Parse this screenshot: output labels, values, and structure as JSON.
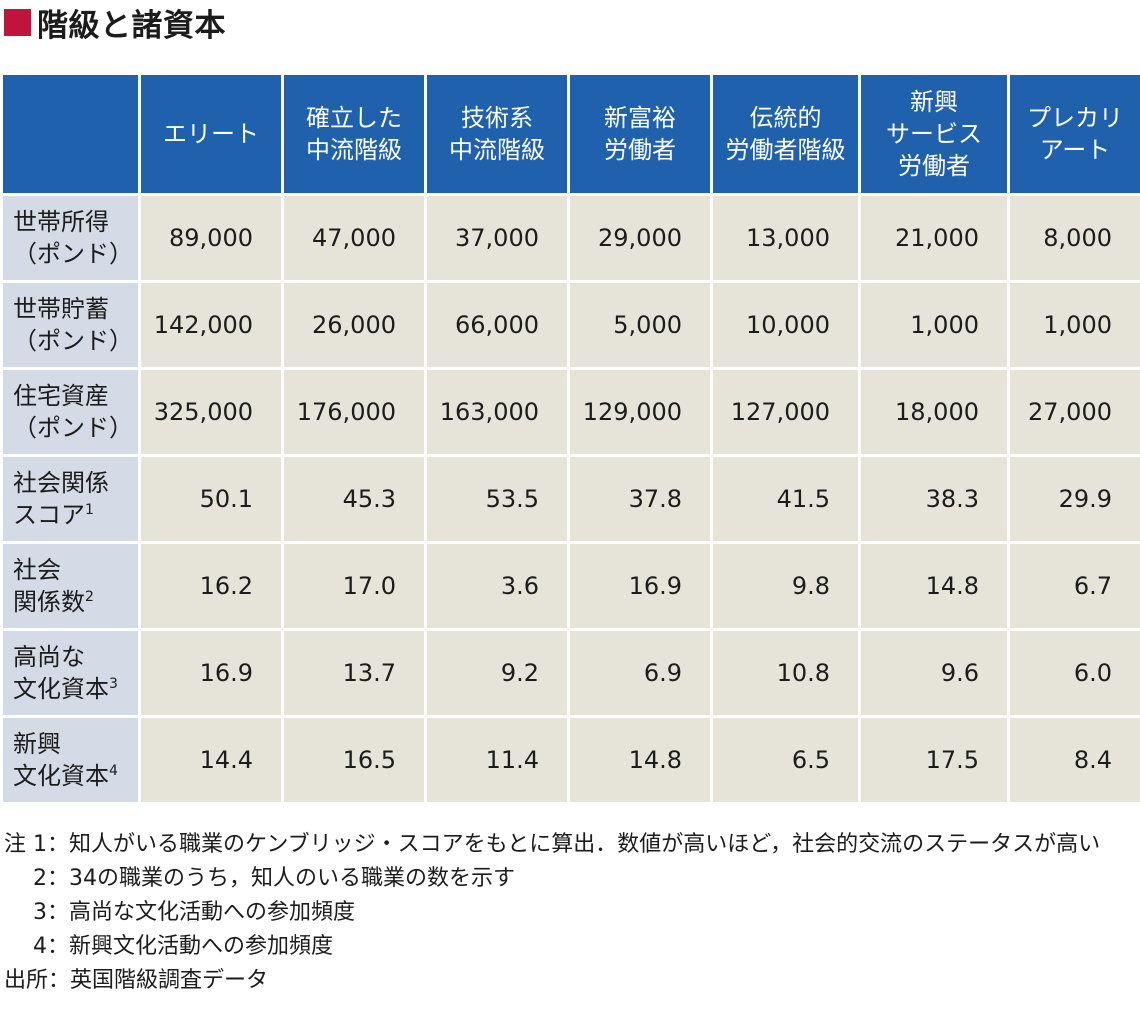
{
  "title": "階級と諸資本",
  "accent_color": "#c0143c",
  "header_color": "#1f61ac",
  "columns": [
    "エリート",
    "確立した\n中流階級",
    "技術系\n中流階級",
    "新富裕\n労働者",
    "伝統的\n労働者階級",
    "新興\nサービス\n労働者",
    "プレカリ\nアート"
  ],
  "rows": [
    {
      "label": "世帯所得\n（ポンド）",
      "note": "",
      "values": [
        "89,000",
        "47,000",
        "37,000",
        "29,000",
        "13,000",
        "21,000",
        "8,000"
      ]
    },
    {
      "label": "世帯貯蓄\n（ポンド）",
      "note": "",
      "values": [
        "142,000",
        "26,000",
        "66,000",
        "5,000",
        "10,000",
        "1,000",
        "1,000"
      ]
    },
    {
      "label": "住宅資産\n（ポンド）",
      "note": "",
      "values": [
        "325,000",
        "176,000",
        "163,000",
        "129,000",
        "127,000",
        "18,000",
        "27,000"
      ]
    },
    {
      "label": "社会関係\nスコア",
      "note": "1",
      "values": [
        "50.1",
        "45.3",
        "53.5",
        "37.8",
        "41.5",
        "38.3",
        "29.9"
      ]
    },
    {
      "label": "社会\n関係数",
      "note": "2",
      "values": [
        "16.2",
        "17.0",
        "3.6",
        "16.9",
        "9.8",
        "14.8",
        "6.7"
      ]
    },
    {
      "label": "高尚な\n文化資本",
      "note": "3",
      "values": [
        "16.9",
        "13.7",
        "9.2",
        "6.9",
        "10.8",
        "9.6",
        "6.0"
      ]
    },
    {
      "label": "新興\n文化資本",
      "note": "4",
      "values": [
        "14.4",
        "16.5",
        "11.4",
        "14.8",
        "6.5",
        "17.5",
        "8.4"
      ]
    }
  ],
  "notes": [
    {
      "prefix": "注 1：",
      "text": "知人がいる職業のケンブリッジ・スコアをもとに算出．数値が高いほど，社会的交流のステータスが高い"
    },
    {
      "prefix": "　 2：",
      "text": "34の職業のうち，知人のいる職業の数を示す"
    },
    {
      "prefix": "　 3：",
      "text": "高尚な文化活動への参加頻度"
    },
    {
      "prefix": "　 4：",
      "text": "新興文化活動への参加頻度"
    }
  ],
  "source": {
    "prefix": "出所：",
    "text": "英国階級調査データ"
  }
}
